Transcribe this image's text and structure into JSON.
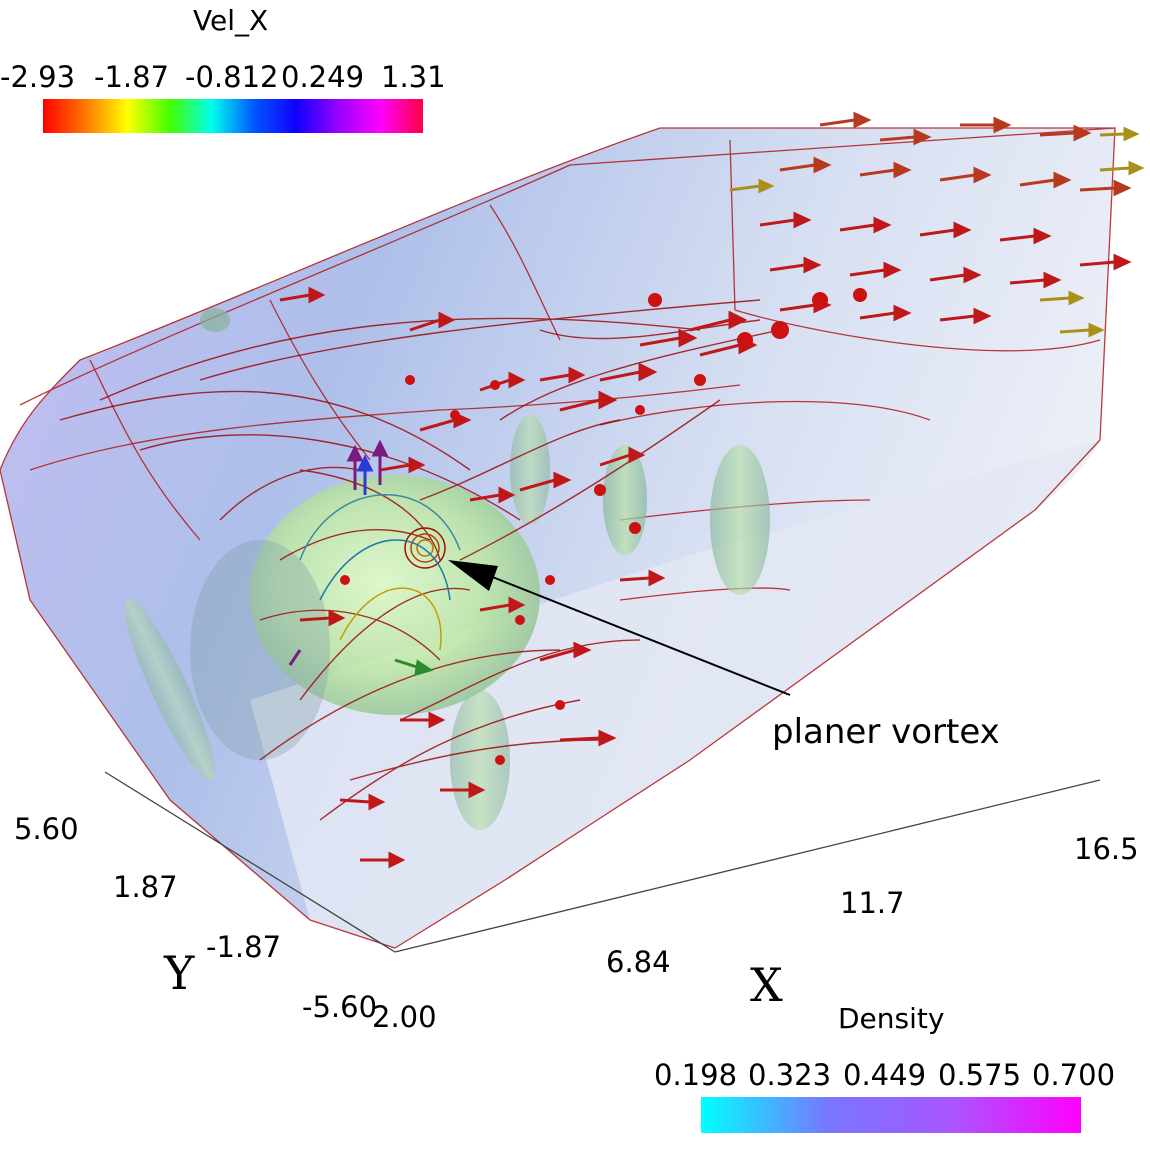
{
  "vel_legend": {
    "title": "Vel_X",
    "ticks": [
      "-2.93",
      "-1.87",
      "-0.812",
      "0.249",
      "1.31"
    ],
    "gradient": [
      "#ff0000",
      "#ff7700",
      "#ffff00",
      "#44ff00",
      "#00ffee",
      "#0055ff",
      "#1100ff",
      "#9900ff",
      "#ff00ff",
      "#ff0044"
    ]
  },
  "density_legend": {
    "title": "Density",
    "ticks": [
      "0.198",
      "0.323",
      "0.449",
      "0.575",
      "0.700"
    ],
    "gradient": [
      "#00ffff",
      "#7777ff",
      "#aa55ff",
      "#ff00ff"
    ]
  },
  "axes": {
    "y_label": "Y",
    "x_label": "X",
    "y_ticks": [
      "5.60",
      "1.87",
      "-1.87",
      "-5.60"
    ],
    "x_ticks": [
      "2.00",
      "6.84",
      "11.7",
      "16.5"
    ]
  },
  "annotation": {
    "text": "planer vortex"
  },
  "colors": {
    "streamline": "#b00000",
    "domain_tint": "#c8d4f0",
    "vortex_blob": "#c6f0a8"
  }
}
